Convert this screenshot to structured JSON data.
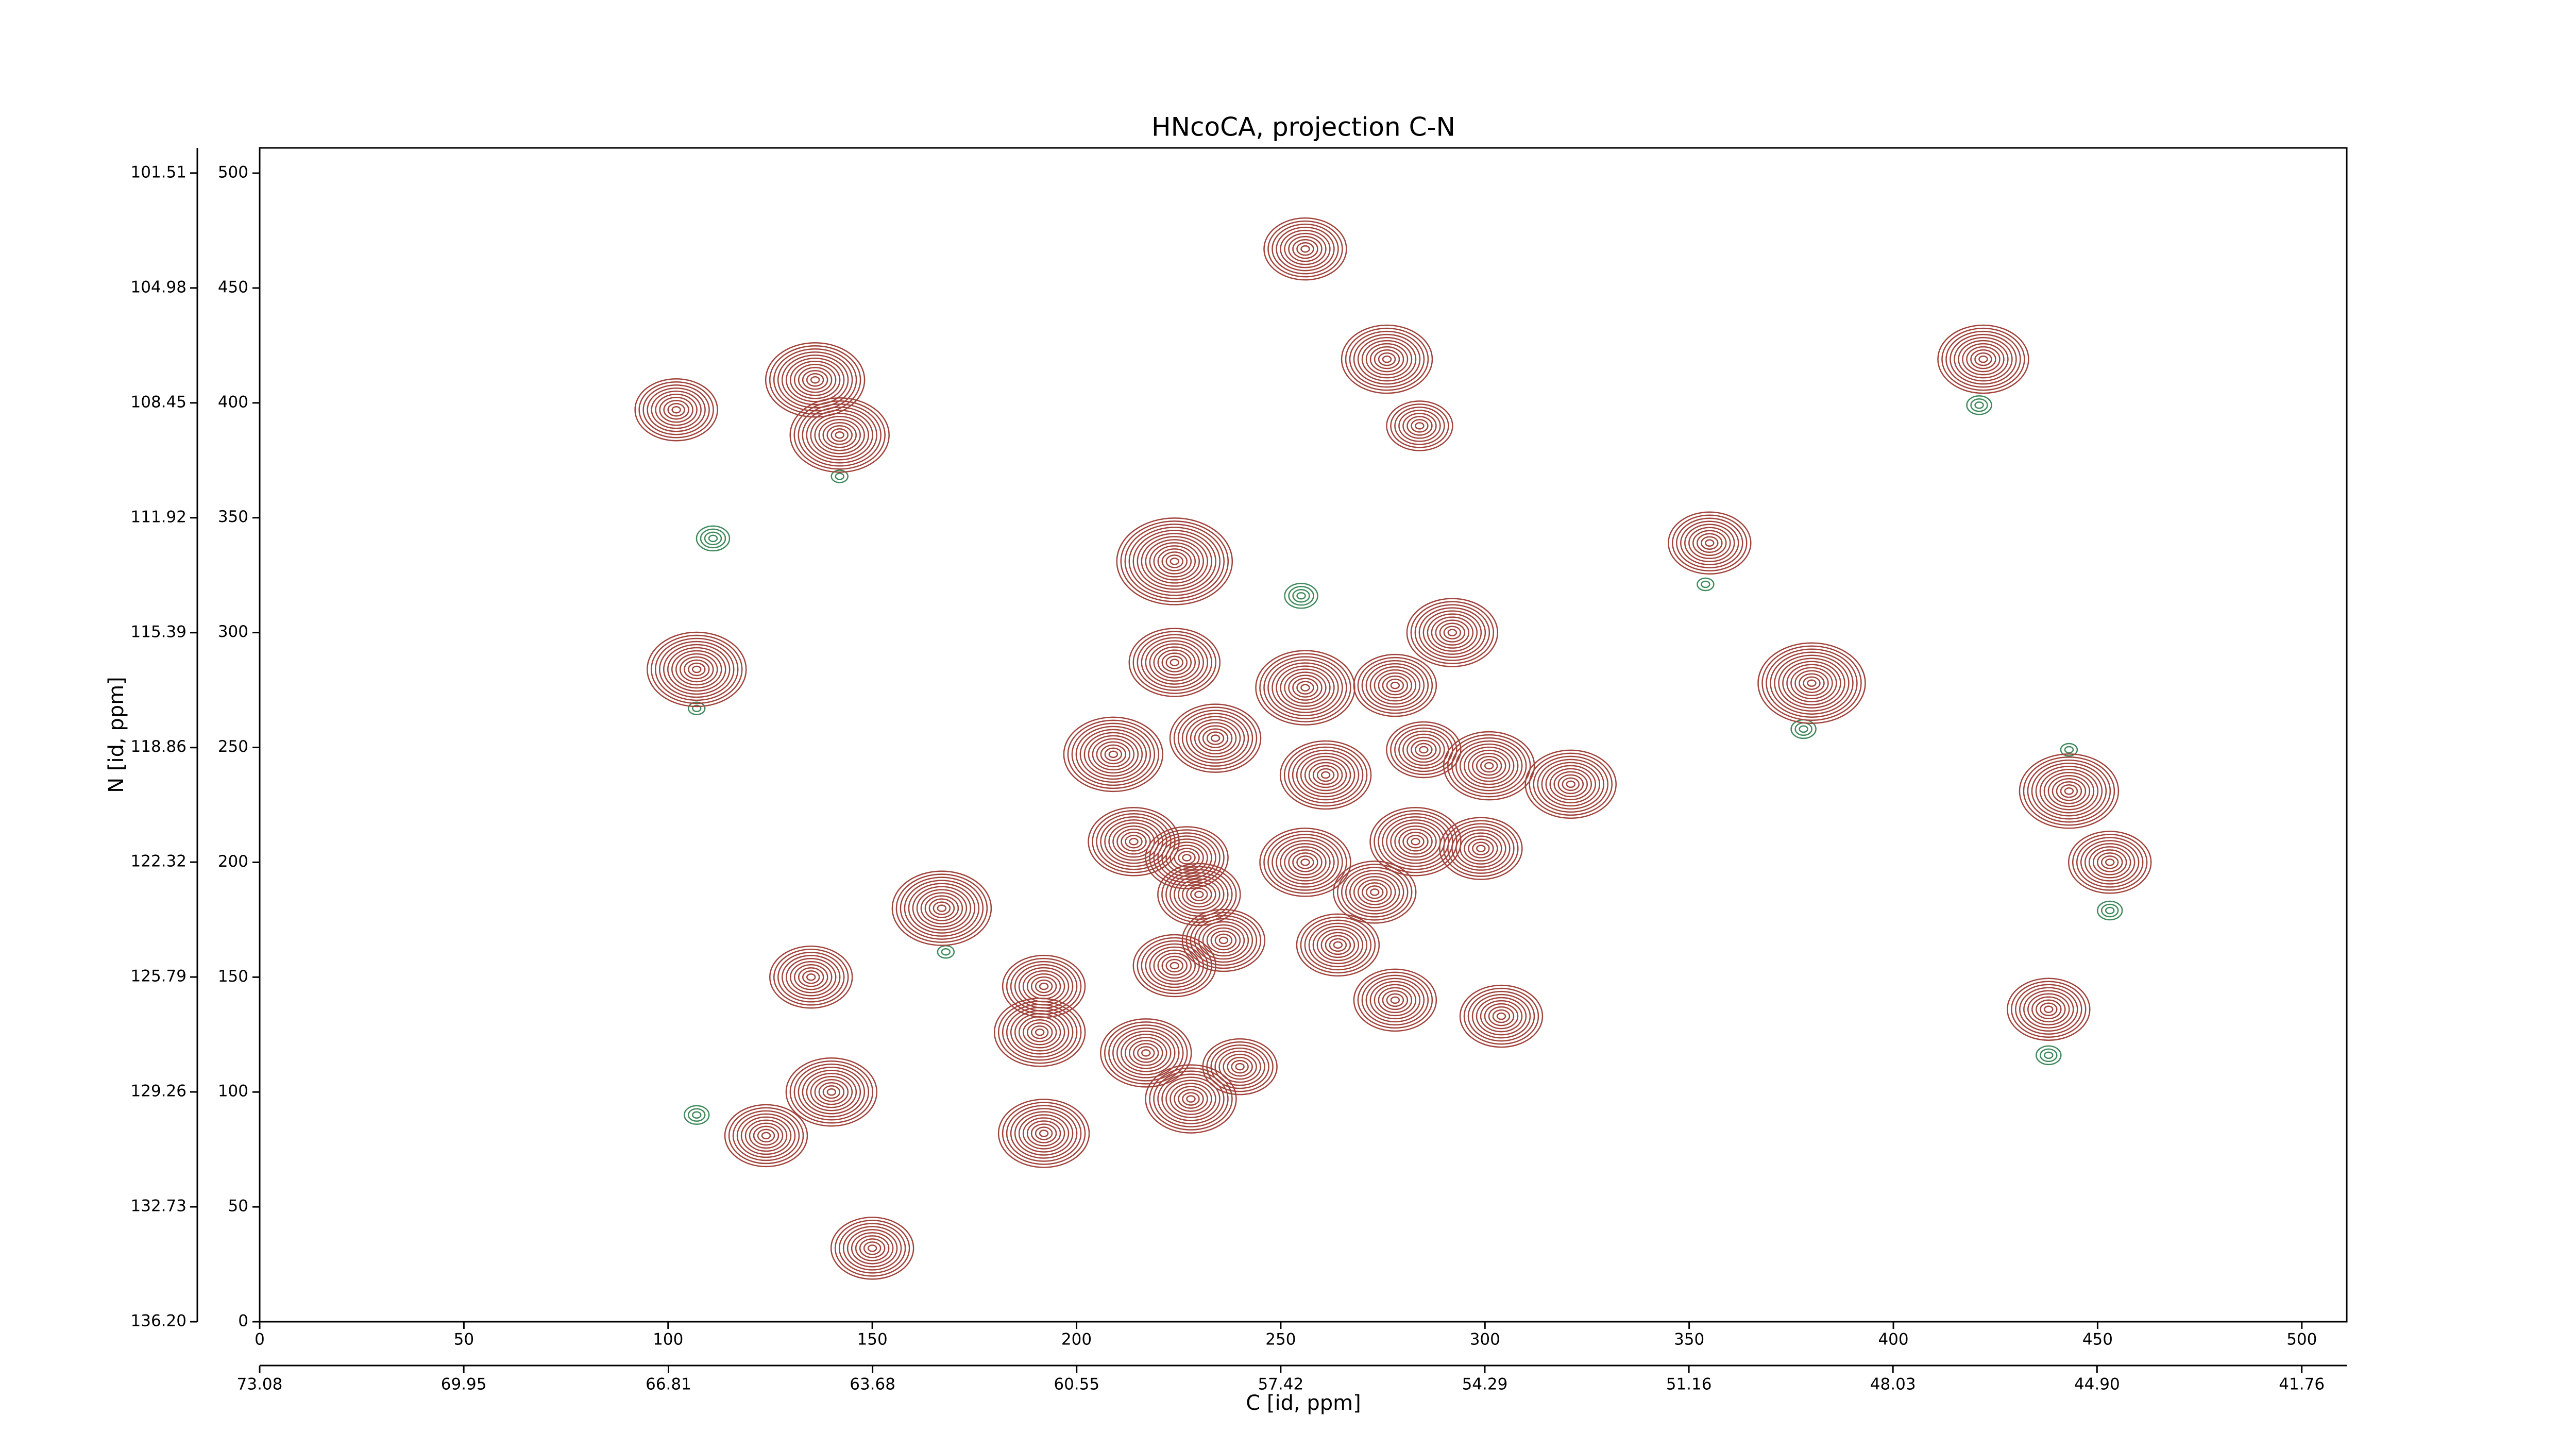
{
  "chart_data": {
    "type": "contour",
    "title": "HNcoCA, projection C-N",
    "x_label": "C [id, ppm]",
    "y_label": "N [id, ppm]",
    "xlim": [
      0,
      511
    ],
    "ylim": [
      0,
      511
    ],
    "xticks": [
      0,
      50,
      100,
      150,
      200,
      250,
      300,
      350,
      400,
      450,
      500
    ],
    "yticks": [
      0,
      50,
      100,
      150,
      200,
      250,
      300,
      350,
      400,
      450,
      500
    ],
    "x2lim": [
      73.08,
      41.07
    ],
    "x2ticks": [
      73.08,
      69.95,
      66.81,
      63.68,
      60.55,
      57.42,
      54.29,
      51.16,
      48.03,
      {
        "value": 44.9,
        "label": "44.90"
      },
      41.76
    ],
    "y2lim": [
      136.2,
      100.75
    ],
    "y2ticks": [
      {
        "value": 136.2,
        "label": "136.20"
      },
      132.73,
      129.26,
      125.79,
      122.32,
      118.86,
      115.39,
      111.92,
      108.45,
      104.98,
      101.51
    ],
    "positive_color": "#a0443c",
    "negative_color": "#3f8a5c",
    "peaks": [
      {
        "x": 256,
        "y": 467,
        "levels": 10
      },
      {
        "x": 276,
        "y": 419,
        "levels": 11
      },
      {
        "x": 284,
        "y": 390,
        "levels": 8
      },
      {
        "x": 422,
        "y": 419,
        "levels": 11
      },
      {
        "x": 102,
        "y": 397,
        "levels": 10
      },
      {
        "x": 136,
        "y": 410,
        "levels": 12
      },
      {
        "x": 142,
        "y": 386,
        "levels": 12
      },
      {
        "x": 355,
        "y": 339,
        "levels": 10
      },
      {
        "x": 224,
        "y": 331,
        "levels": 14
      },
      {
        "x": 292,
        "y": 300,
        "levels": 11
      },
      {
        "x": 107,
        "y": 284,
        "levels": 12
      },
      {
        "x": 224,
        "y": 287,
        "levels": 11
      },
      {
        "x": 256,
        "y": 276,
        "levels": 12
      },
      {
        "x": 380,
        "y": 278,
        "levels": 13
      },
      {
        "x": 209,
        "y": 247,
        "levels": 12
      },
      {
        "x": 234,
        "y": 254,
        "levels": 11
      },
      {
        "x": 261,
        "y": 238,
        "levels": 11
      },
      {
        "x": 301,
        "y": 242,
        "levels": 11
      },
      {
        "x": 321,
        "y": 234,
        "levels": 11
      },
      {
        "x": 443,
        "y": 231,
        "levels": 12
      },
      {
        "x": 453,
        "y": 200,
        "levels": 10
      },
      {
        "x": 167,
        "y": 180,
        "levels": 12
      },
      {
        "x": 214,
        "y": 209,
        "levels": 11
      },
      {
        "x": 227,
        "y": 202,
        "levels": 10
      },
      {
        "x": 256,
        "y": 200,
        "levels": 11
      },
      {
        "x": 283,
        "y": 209,
        "levels": 11
      },
      {
        "x": 299,
        "y": 206,
        "levels": 10
      },
      {
        "x": 230,
        "y": 186,
        "levels": 10
      },
      {
        "x": 273,
        "y": 187,
        "levels": 10
      },
      {
        "x": 236,
        "y": 166,
        "levels": 10
      },
      {
        "x": 264,
        "y": 164,
        "levels": 10
      },
      {
        "x": 224,
        "y": 155,
        "levels": 10
      },
      {
        "x": 135,
        "y": 150,
        "levels": 10
      },
      {
        "x": 192,
        "y": 146,
        "levels": 10
      },
      {
        "x": 278,
        "y": 140,
        "levels": 10
      },
      {
        "x": 304,
        "y": 133,
        "levels": 10
      },
      {
        "x": 438,
        "y": 136,
        "levels": 10
      },
      {
        "x": 191,
        "y": 126,
        "levels": 11
      },
      {
        "x": 217,
        "y": 117,
        "levels": 11
      },
      {
        "x": 240,
        "y": 111,
        "levels": 9
      },
      {
        "x": 140,
        "y": 100,
        "levels": 11
      },
      {
        "x": 228,
        "y": 97,
        "levels": 11
      },
      {
        "x": 124,
        "y": 81,
        "levels": 10
      },
      {
        "x": 192,
        "y": 82,
        "levels": 11
      },
      {
        "x": 150,
        "y": 32,
        "levels": 10
      },
      {
        "x": 278,
        "y": 277,
        "levels": 10
      },
      {
        "x": 285,
        "y": 249,
        "levels": 9
      }
    ],
    "negative_peaks": [
      {
        "x": 142,
        "y": 368,
        "levels": 2
      },
      {
        "x": 111,
        "y": 341,
        "levels": 4
      },
      {
        "x": 255,
        "y": 316,
        "levels": 4
      },
      {
        "x": 354,
        "y": 321,
        "levels": 2
      },
      {
        "x": 107,
        "y": 267,
        "levels": 2
      },
      {
        "x": 378,
        "y": 258,
        "levels": 3
      },
      {
        "x": 421,
        "y": 399,
        "levels": 3
      },
      {
        "x": 443,
        "y": 249,
        "levels": 2
      },
      {
        "x": 453,
        "y": 179,
        "levels": 3
      },
      {
        "x": 438,
        "y": 116,
        "levels": 3
      },
      {
        "x": 168,
        "y": 161,
        "levels": 2
      },
      {
        "x": 107,
        "y": 90,
        "levels": 3
      }
    ]
  }
}
